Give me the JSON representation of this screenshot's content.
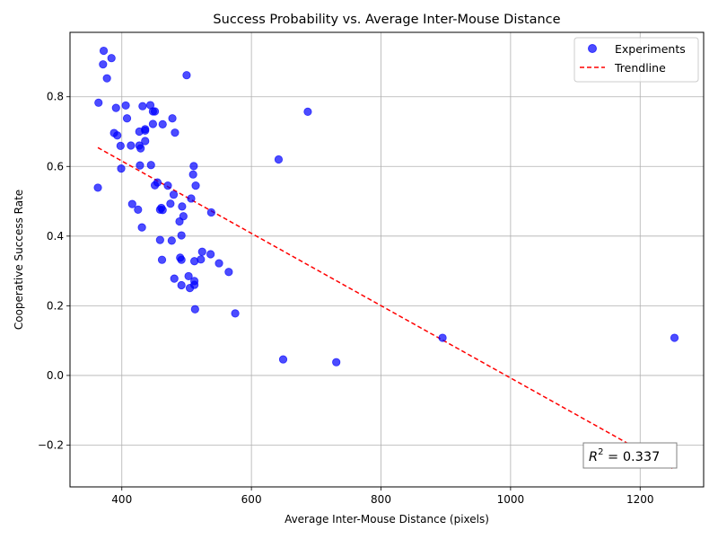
{
  "chart_data": {
    "type": "scatter",
    "title": "Success Probability vs. Average Inter-Mouse Distance",
    "xlabel": "Average Inter-Mouse Distance (pixels)",
    "ylabel": "Cooperative Success Rate",
    "xlim": [
      320,
      1298
    ],
    "ylim": [
      -0.32,
      0.985
    ],
    "xticks": [
      400,
      600,
      800,
      1000,
      1200
    ],
    "xtick_labels": [
      "400",
      "600",
      "800",
      "1000",
      "1200"
    ],
    "yticks": [
      -0.2,
      0.0,
      0.2,
      0.4,
      0.6,
      0.8
    ],
    "ytick_labels": [
      "−0.2",
      "0.0",
      "0.2",
      "0.4",
      "0.6",
      "0.8"
    ],
    "grid": true,
    "legend_position": "top-right",
    "colors": {
      "points": "#0000ff",
      "trendline": "#ff0000"
    },
    "series": [
      {
        "name": "Experiments",
        "kind": "scatter",
        "points": [
          [
            372,
            0.932
          ],
          [
            384,
            0.911
          ],
          [
            371,
            0.893
          ],
          [
            377,
            0.853
          ],
          [
            500,
            0.862
          ],
          [
            364,
            0.783
          ],
          [
            391,
            0.768
          ],
          [
            406,
            0.775
          ],
          [
            432,
            0.773
          ],
          [
            444,
            0.776
          ],
          [
            448,
            0.758
          ],
          [
            451,
            0.758
          ],
          [
            687,
            0.757
          ],
          [
            408,
            0.738
          ],
          [
            478,
            0.738
          ],
          [
            448,
            0.722
          ],
          [
            463,
            0.721
          ],
          [
            436,
            0.707
          ],
          [
            436,
            0.703
          ],
          [
            427,
            0.7
          ],
          [
            388,
            0.696
          ],
          [
            393,
            0.689
          ],
          [
            482,
            0.697
          ],
          [
            436,
            0.673
          ],
          [
            414,
            0.66
          ],
          [
            398,
            0.659
          ],
          [
            427,
            0.66
          ],
          [
            429,
            0.652
          ],
          [
            642,
            0.62
          ],
          [
            428,
            0.603
          ],
          [
            445,
            0.604
          ],
          [
            511,
            0.601
          ],
          [
            399,
            0.594
          ],
          [
            510,
            0.577
          ],
          [
            363,
            0.539
          ],
          [
            455,
            0.554
          ],
          [
            451,
            0.546
          ],
          [
            471,
            0.545
          ],
          [
            514,
            0.545
          ],
          [
            480,
            0.519
          ],
          [
            507,
            0.508
          ],
          [
            416,
            0.492
          ],
          [
            475,
            0.493
          ],
          [
            493,
            0.485
          ],
          [
            461,
            0.481
          ],
          [
            459,
            0.476
          ],
          [
            463,
            0.475
          ],
          [
            425,
            0.476
          ],
          [
            538,
            0.468
          ],
          [
            495,
            0.457
          ],
          [
            489,
            0.442
          ],
          [
            431,
            0.425
          ],
          [
            492,
            0.402
          ],
          [
            459,
            0.389
          ],
          [
            477,
            0.387
          ],
          [
            524,
            0.355
          ],
          [
            537,
            0.348
          ],
          [
            490,
            0.338
          ],
          [
            492,
            0.332
          ],
          [
            462,
            0.332
          ],
          [
            522,
            0.333
          ],
          [
            512,
            0.328
          ],
          [
            550,
            0.322
          ],
          [
            565,
            0.297
          ],
          [
            503,
            0.285
          ],
          [
            481,
            0.278
          ],
          [
            512,
            0.271
          ],
          [
            492,
            0.259
          ],
          [
            512,
            0.26
          ],
          [
            505,
            0.251
          ],
          [
            513,
            0.19
          ],
          [
            575,
            0.178
          ],
          [
            895,
            0.108
          ],
          [
            1253,
            0.108
          ],
          [
            649,
            0.046
          ],
          [
            731,
            0.038
          ]
        ]
      },
      {
        "name": "Trendline",
        "kind": "line",
        "x": [
          363,
          1253
        ],
        "y": [
          0.654,
          -0.27
        ]
      }
    ],
    "annotation": {
      "prefix": "R",
      "superscript": "2",
      "suffix": " = 0.337"
    }
  }
}
